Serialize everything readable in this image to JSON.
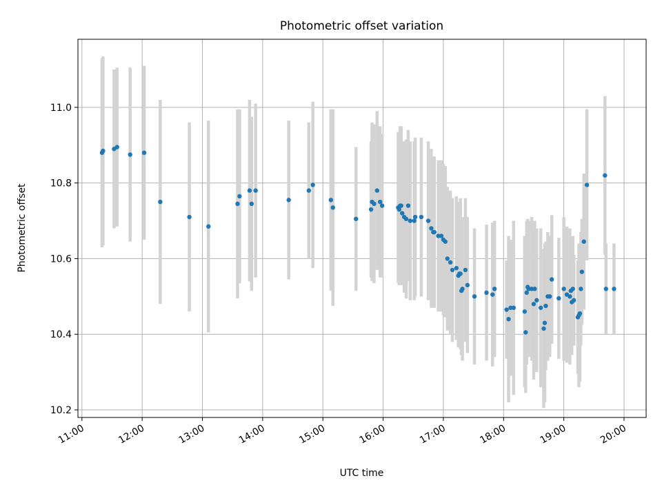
{
  "chart_data": {
    "type": "scatter",
    "title": "Photometric offset variation",
    "xlabel": "UTC time",
    "ylabel": "Photometric offset",
    "xlim": [
      "10:56",
      "20:22"
    ],
    "ylim": [
      10.18,
      11.18
    ],
    "x_ticks": [
      "11:00",
      "12:00",
      "13:00",
      "14:00",
      "15:00",
      "16:00",
      "17:00",
      "18:00",
      "19:00",
      "20:00"
    ],
    "y_ticks": [
      "10.2",
      "10.4",
      "10.6",
      "10.8",
      "11.0"
    ],
    "grid": true,
    "colors": {
      "points": "#1f77b4",
      "error_bars": "#d3d3d3",
      "grid": "#b0b0b0"
    },
    "series": [
      {
        "x": [
          "11:20",
          "11:21",
          "11:32",
          "11:35",
          "11:48",
          "12:02",
          "12:18",
          "12:47",
          "13:06",
          "13:35",
          "13:37",
          "13:47",
          "13:49",
          "13:53",
          "14:26",
          "14:46",
          "14:50",
          "15:08",
          "15:10",
          "15:33",
          "15:48",
          "15:49",
          "15:51",
          "15:54",
          "15:57",
          "15:59",
          "16:15",
          "16:16",
          "16:17",
          "16:18",
          "16:19",
          "16:21",
          "16:23",
          "16:25",
          "16:27",
          "16:31",
          "16:32",
          "16:38",
          "16:45",
          "16:48",
          "16:50",
          "16:51",
          "16:55",
          "16:58",
          "17:00",
          "17:02",
          "17:04",
          "17:07",
          "17:09",
          "17:13",
          "17:15",
          "17:16",
          "17:17",
          "17:18",
          "17:19",
          "17:22",
          "17:24",
          "17:31",
          "17:43",
          "17:49",
          "17:51",
          "18:03",
          "18:05",
          "18:07",
          "18:10",
          "18:21",
          "18:22",
          "18:23",
          "18:24",
          "18:25",
          "18:28",
          "18:30",
          "18:31",
          "18:33",
          "18:37",
          "18:40",
          "18:41",
          "18:42",
          "18:44",
          "18:46",
          "18:48",
          "18:55",
          "19:00",
          "19:03",
          "19:06",
          "19:07",
          "19:08",
          "19:09",
          "19:10",
          "19:14",
          "19:15",
          "19:16",
          "19:17",
          "19:18",
          "19:20",
          "19:23",
          "19:41",
          "19:42",
          "19:50"
        ],
        "y": [
          10.88,
          10.885,
          10.89,
          10.895,
          10.875,
          10.88,
          10.75,
          10.71,
          10.685,
          10.745,
          10.765,
          10.78,
          10.745,
          10.78,
          10.755,
          10.78,
          10.795,
          10.755,
          10.735,
          10.705,
          10.73,
          10.75,
          10.745,
          10.78,
          10.75,
          10.74,
          10.735,
          10.73,
          10.74,
          10.74,
          10.72,
          10.71,
          10.705,
          10.74,
          10.7,
          10.7,
          10.71,
          10.71,
          10.7,
          10.68,
          10.67,
          10.67,
          10.66,
          10.66,
          10.65,
          10.645,
          10.6,
          10.59,
          10.57,
          10.575,
          10.555,
          10.56,
          10.56,
          10.515,
          10.52,
          10.57,
          10.53,
          10.5,
          10.51,
          10.505,
          10.52,
          10.465,
          10.44,
          10.47,
          10.47,
          10.46,
          10.405,
          10.51,
          10.525,
          10.52,
          10.52,
          10.48,
          10.52,
          10.49,
          10.47,
          10.415,
          10.43,
          10.475,
          10.5,
          10.5,
          10.545,
          10.495,
          10.52,
          10.505,
          10.5,
          10.515,
          10.485,
          10.52,
          10.49,
          10.445,
          10.45,
          10.455,
          10.52,
          10.565,
          10.645,
          10.795,
          10.82,
          10.52,
          10.52
        ],
        "err": [
          0.25,
          0.25,
          0.21,
          0.21,
          0.23,
          0.23,
          0.27,
          0.25,
          0.28,
          0.25,
          0.23,
          0.24,
          0.23,
          0.23,
          0.21,
          0.18,
          0.22,
          0.24,
          0.26,
          0.19,
          0.18,
          0.21,
          0.21,
          0.21,
          0.2,
          0.19,
          0.2,
          0.2,
          0.21,
          0.21,
          0.19,
          0.2,
          0.21,
          0.2,
          0.21,
          0.21,
          0.21,
          0.21,
          0.21,
          0.21,
          0.2,
          0.2,
          0.2,
          0.2,
          0.2,
          0.2,
          0.19,
          0.19,
          0.19,
          0.19,
          0.19,
          0.19,
          0.2,
          0.17,
          0.19,
          0.19,
          0.18,
          0.18,
          0.18,
          0.19,
          0.18,
          0.13,
          0.22,
          0.18,
          0.23,
          0.2,
          0.16,
          0.19,
          0.18,
          0.18,
          0.19,
          0.2,
          0.18,
          0.19,
          0.21,
          0.21,
          0.21,
          0.17,
          0.17,
          0.16,
          0.17,
          0.16,
          0.19,
          0.18,
          0.18,
          0.14,
          0.14,
          0.14,
          0.12,
          0.15,
          0.19,
          0.18,
          0.15,
          0.14,
          0.18,
          0.2,
          0.21,
          0.12,
          0.12
        ]
      }
    ]
  }
}
